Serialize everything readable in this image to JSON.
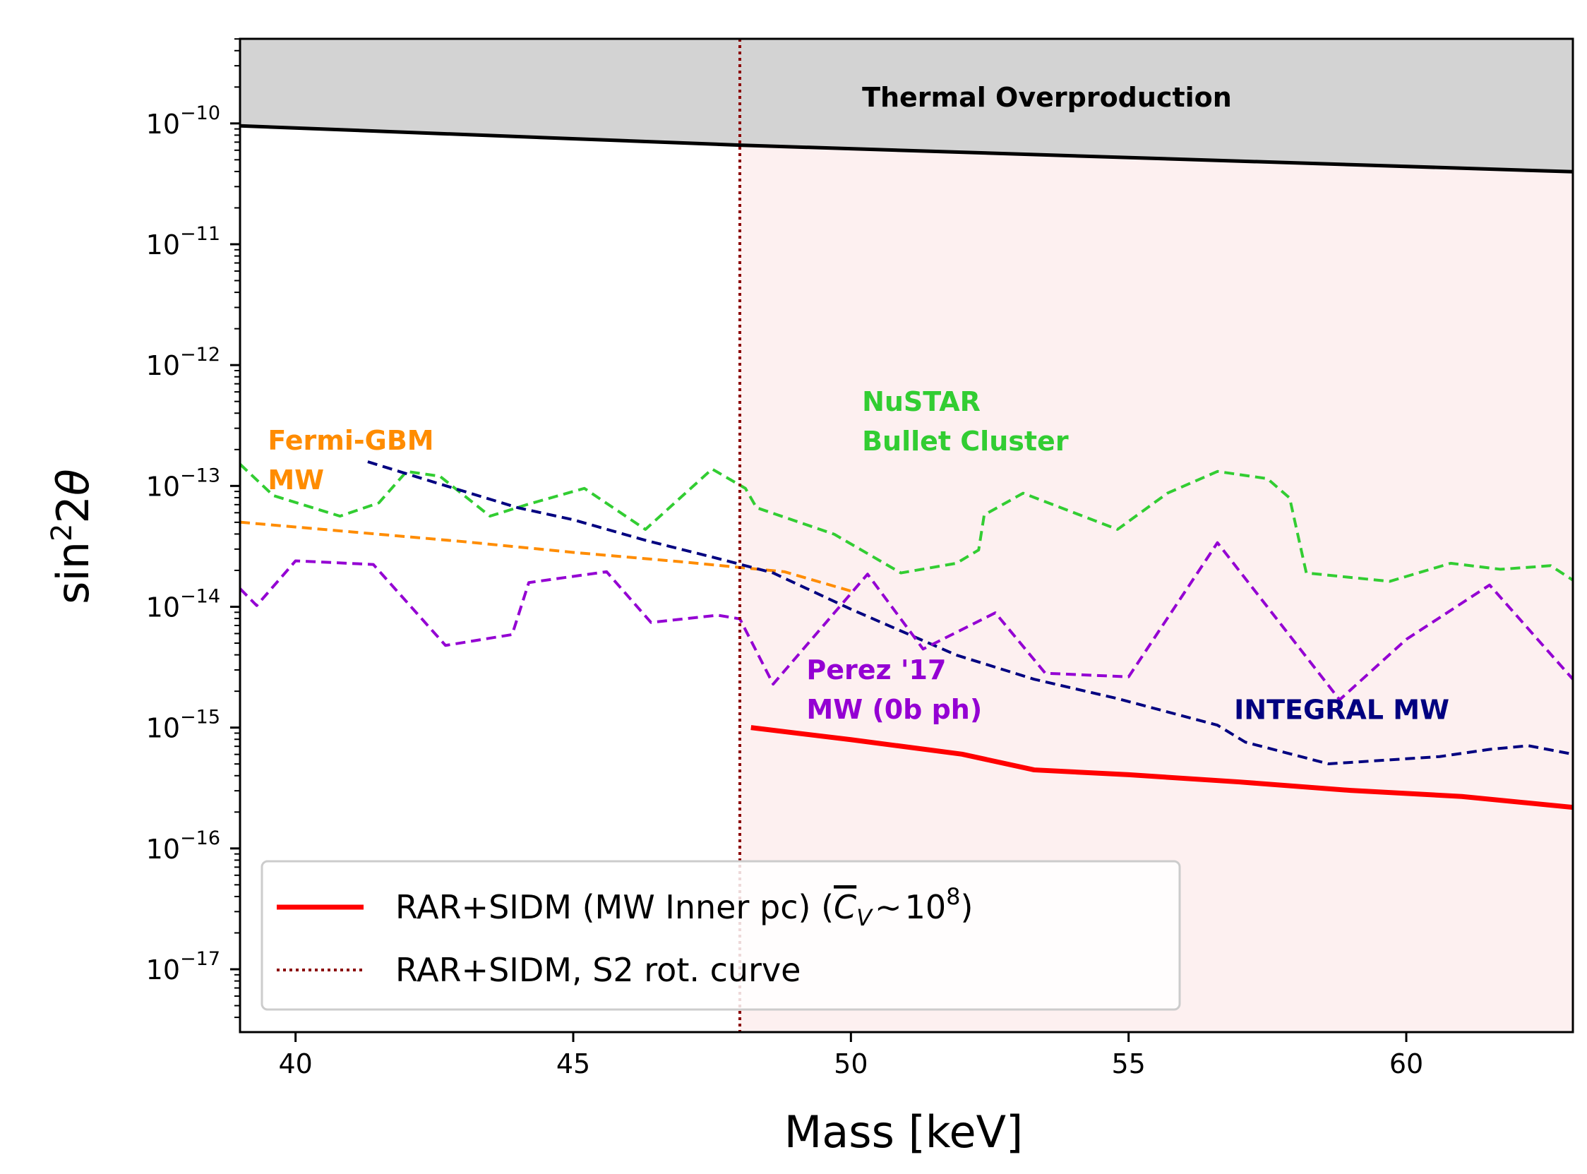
{
  "chart_data": {
    "type": "line",
    "title": "",
    "xlabel": "Mass [keV]",
    "ylabel": "sin²2θ",
    "y_scale": "log",
    "xlim": [
      39,
      63
    ],
    "ylim_exp": [
      -17.52,
      -9.3
    ],
    "x_ticks": [
      40,
      45,
      50,
      55,
      60
    ],
    "x_tick_labels": [
      "40",
      "45",
      "50",
      "55",
      "60"
    ],
    "y_ticks_exp": [
      -10,
      -11,
      -12,
      -13,
      -14,
      -15,
      -16,
      -17
    ],
    "y_tick_labels": [
      {
        "base": "10",
        "exp": "−10"
      },
      {
        "base": "10",
        "exp": "−11"
      },
      {
        "base": "10",
        "exp": "−12"
      },
      {
        "base": "10",
        "exp": "−13"
      },
      {
        "base": "10",
        "exp": "−14"
      },
      {
        "base": "10",
        "exp": "−15"
      },
      {
        "base": "10",
        "exp": "−16"
      },
      {
        "base": "10",
        "exp": "−17"
      }
    ],
    "regions": [
      {
        "name": "Thermal Overproduction",
        "color": "#d3d3d3",
        "boundary_x": [
          39,
          48,
          63
        ],
        "boundary_log10_y": [
          -10.02,
          -10.18,
          -10.4
        ]
      },
      {
        "name": "excluded-region",
        "color": "#fdf0f0",
        "x_from": 48,
        "x_to": 63
      }
    ],
    "series": [
      {
        "name": "RAR+SIDM (MW Inner pc)",
        "color": "#ff0000",
        "style": "solid",
        "width": 7,
        "x": [
          48.2,
          50,
          52,
          53.3,
          55,
          57,
          59,
          61,
          63
        ],
        "log10_y": [
          -15,
          -15.1,
          -15.22,
          -15.35,
          -15.39,
          -15.45,
          -15.52,
          -15.57,
          -15.66
        ]
      },
      {
        "name": "NuSTAR Bullet Cluster",
        "color": "#32cd32",
        "style": "dashed",
        "width": 4,
        "x": [
          39,
          39.6,
          40.8,
          41.5,
          42,
          42.6,
          43.5,
          44.2,
          45.2,
          46.3,
          47.5,
          48.1,
          48.3,
          49.7,
          50.9,
          51.9,
          52.3,
          52.4,
          53.1,
          54.8,
          55.7,
          56.6,
          57.5,
          57.9,
          58.2,
          59.7,
          60.8,
          61.7,
          62.6,
          63
        ],
        "log10_y": [
          -12.82,
          -13.08,
          -13.25,
          -13.14,
          -12.88,
          -12.92,
          -13.25,
          -13.15,
          -13.02,
          -13.36,
          -12.86,
          -13.02,
          -13.18,
          -13.4,
          -13.72,
          -13.64,
          -13.53,
          -13.24,
          -13.06,
          -13.36,
          -13.06,
          -12.88,
          -12.94,
          -13.1,
          -13.72,
          -13.79,
          -13.64,
          -13.69,
          -13.66,
          -13.78
        ]
      },
      {
        "name": "Fermi-GBM MW",
        "color": "#ff8c00",
        "style": "dashed",
        "width": 4,
        "x": [
          39,
          41,
          43,
          45,
          47,
          48.8,
          50
        ],
        "log10_y": [
          -13.3,
          -13.38,
          -13.46,
          -13.55,
          -13.63,
          -13.71,
          -13.87
        ]
      },
      {
        "name": "INTEGRAL MW",
        "color": "#000080",
        "style": "dashed",
        "width": 4,
        "x": [
          41.3,
          42.5,
          44,
          45,
          46.3,
          47.6,
          48.6,
          50,
          51.9,
          53.3,
          54.8,
          56.6,
          57.1,
          58.6,
          60.6,
          61.5,
          62.2,
          63
        ],
        "log10_y": [
          -12.8,
          -12.97,
          -13.18,
          -13.28,
          -13.45,
          -13.6,
          -13.72,
          -14.02,
          -14.4,
          -14.6,
          -14.76,
          -14.98,
          -15.12,
          -15.3,
          -15.24,
          -15.18,
          -15.15,
          -15.22
        ]
      },
      {
        "name": "Perez '17 MW (0b ph)",
        "color": "#9400d3",
        "style": "dashed",
        "width": 4,
        "x": [
          39,
          39.3,
          40,
          41.4,
          42.7,
          43.9,
          44.2,
          45.6,
          46.4,
          47.6,
          48,
          48.6,
          50.3,
          51.3,
          52.6,
          53.5,
          55,
          56.6,
          58.8,
          60,
          61.5,
          63
        ],
        "log10_y": [
          -13.85,
          -13.99,
          -13.62,
          -13.65,
          -14.32,
          -14.23,
          -13.8,
          -13.71,
          -14.13,
          -14.07,
          -14.1,
          -14.64,
          -13.73,
          -14.35,
          -14.05,
          -14.55,
          -14.58,
          -13.47,
          -14.77,
          -14.27,
          -13.82,
          -14.6
        ]
      },
      {
        "name": "RAR+SIDM, S2 rot. curve",
        "color": "#8b0000",
        "style": "dotted",
        "width": 4,
        "vertical_x": 48
      }
    ],
    "annotations": [
      {
        "lines": [
          "Thermal Overproduction"
        ],
        "color": "#000000",
        "x": 50.2,
        "log10_y": -9.86
      },
      {
        "lines": [
          "NuSTAR",
          "Bullet Cluster"
        ],
        "color": "#32cd32",
        "x": 50.2,
        "log10_y": -12.38
      },
      {
        "lines": [
          "Fermi-GBM",
          "MW"
        ],
        "color": "#ff8c00",
        "x": 39.5,
        "log10_y": -12.7
      },
      {
        "lines": [
          "Perez '17",
          "MW (0b ph)"
        ],
        "color": "#9400d3",
        "x": 49.2,
        "log10_y": -14.6
      },
      {
        "lines": [
          "INTEGRAL MW"
        ],
        "color": "#000080",
        "x": 56.9,
        "log10_y": -14.93
      }
    ],
    "legend": {
      "placement": "lower-left",
      "entries": [
        {
          "label": "RAR+SIDM (MW Inner pc) (",
          "math": "C̅_V ∼ 10^8",
          "label_end": ")",
          "color": "#ff0000",
          "style": "solid"
        },
        {
          "label": "RAR+SIDM, S2 rot. curve",
          "color": "#8b0000",
          "style": "dotted"
        }
      ]
    },
    "legend_math": {
      "c": "C",
      "sub": "V",
      "tilde": "∼",
      "base": "10",
      "exp": "8"
    }
  }
}
